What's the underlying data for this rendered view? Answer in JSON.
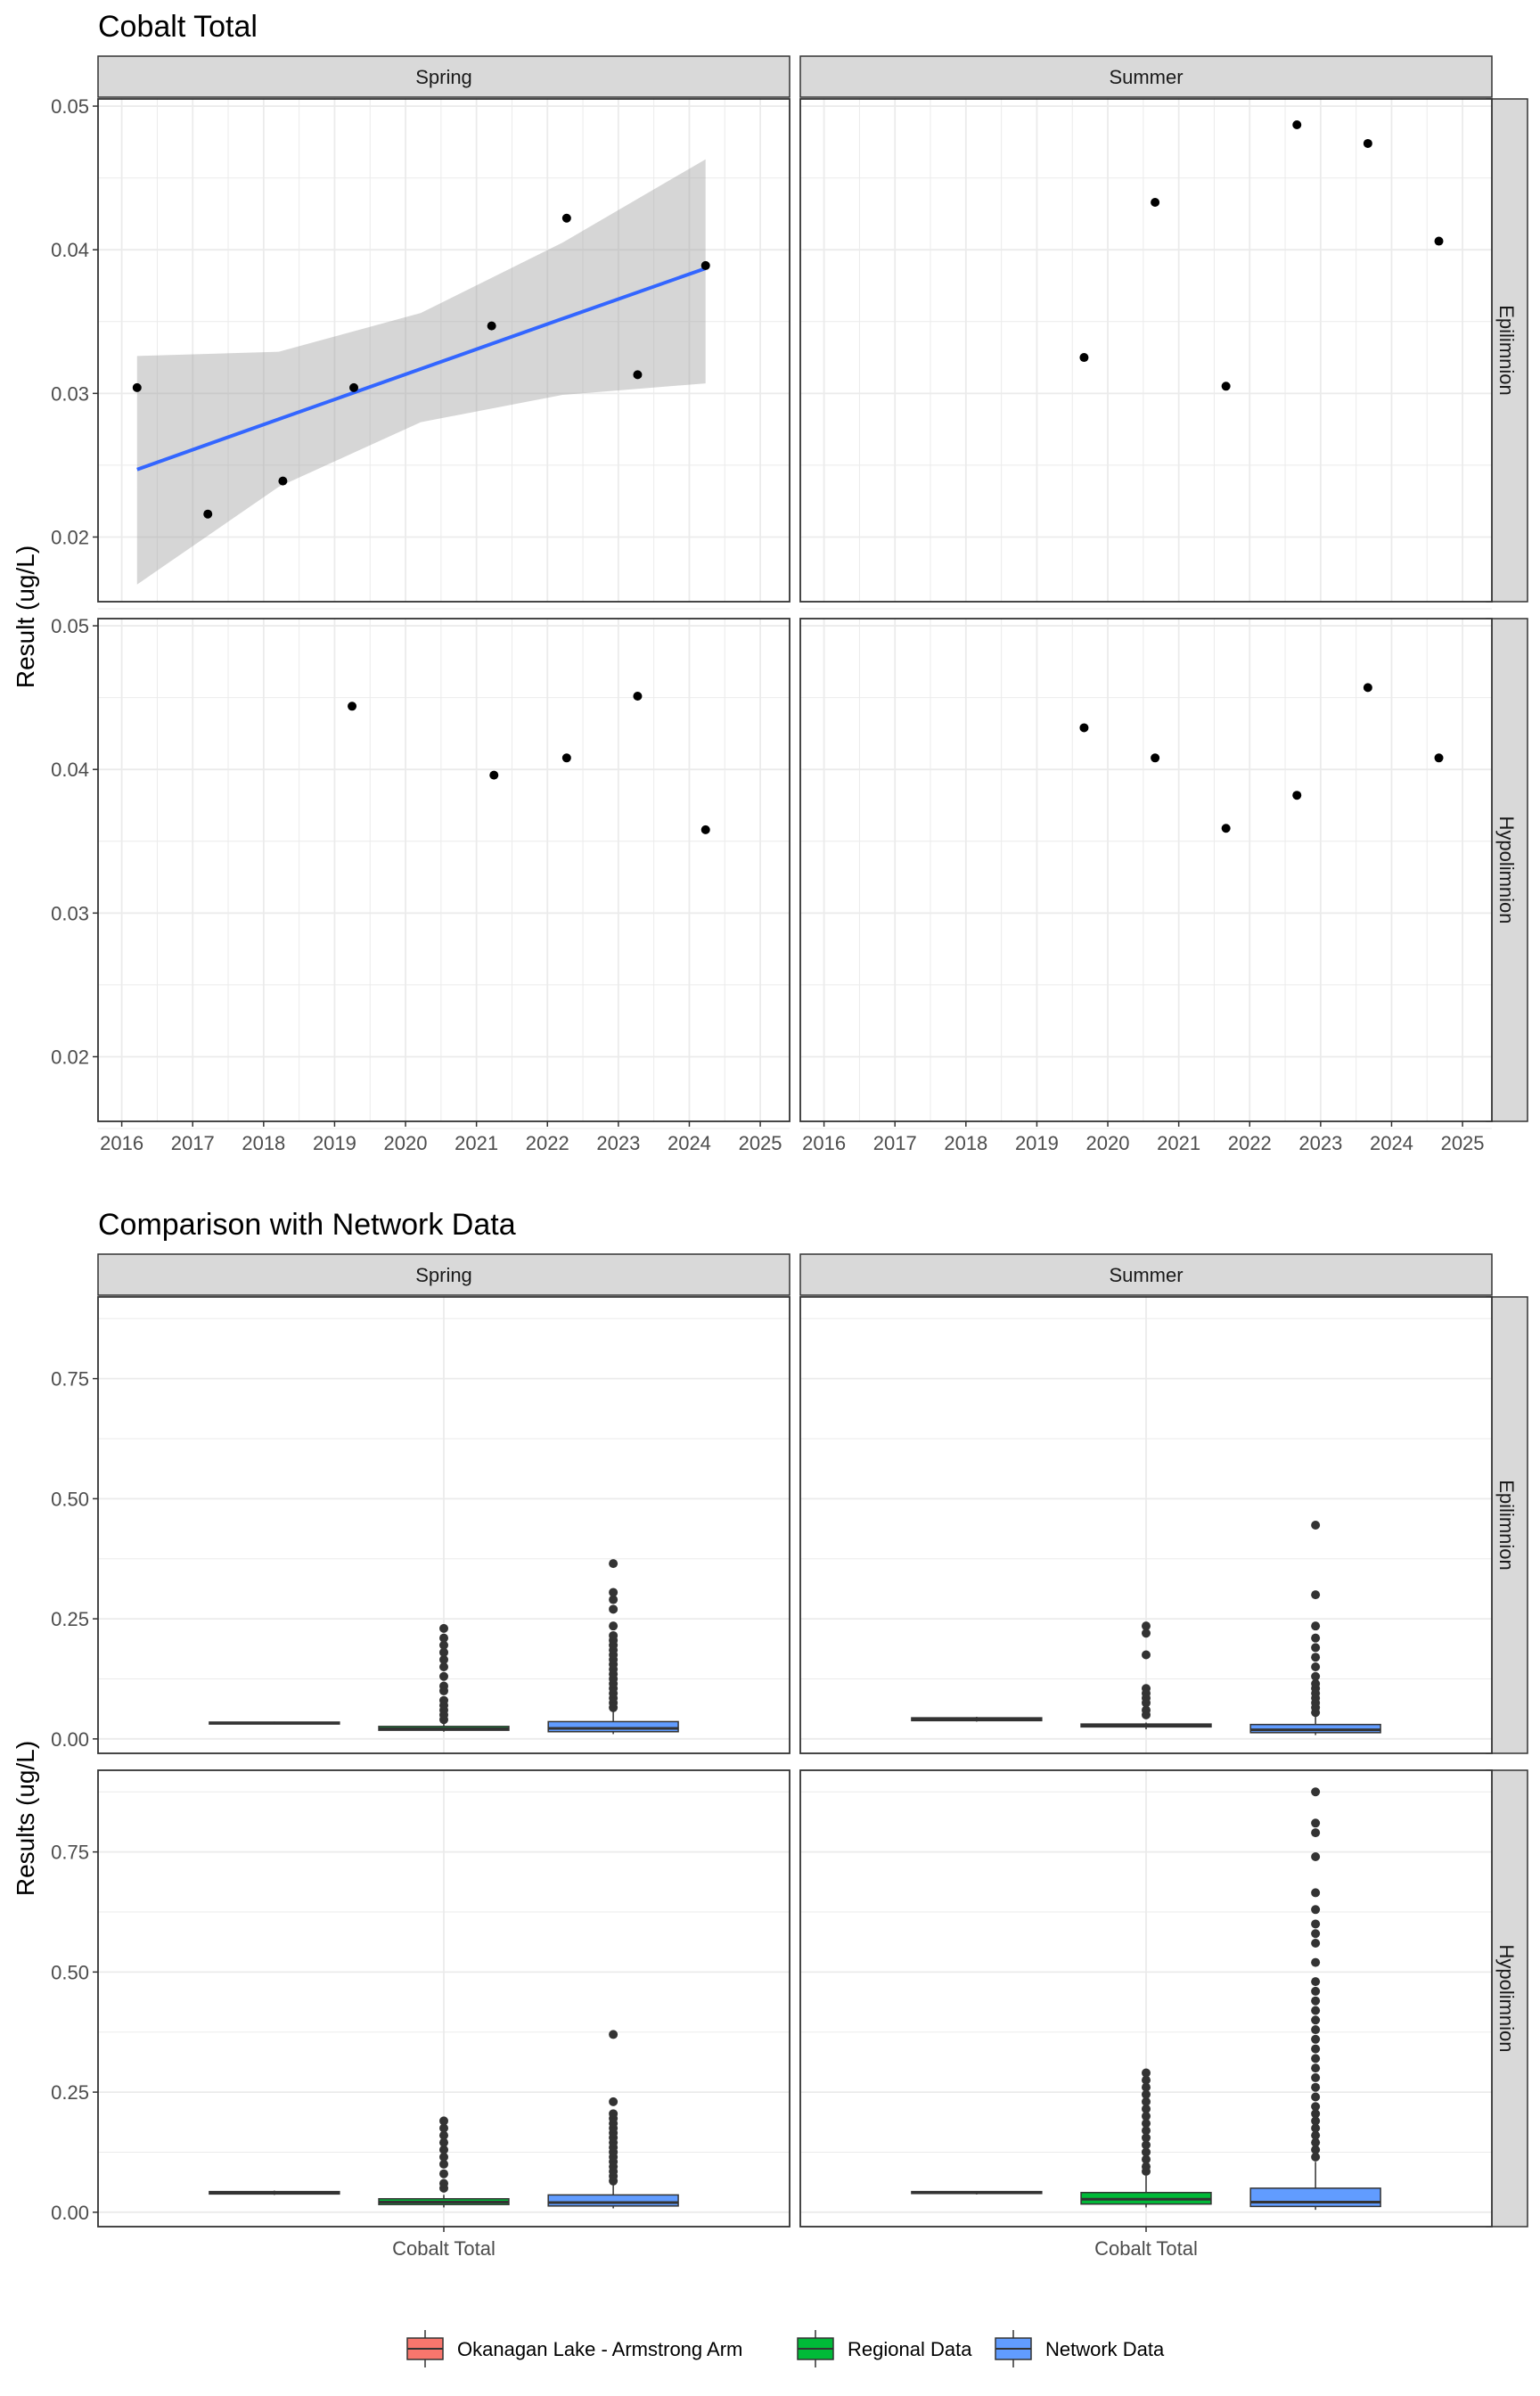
{
  "chart_data": [
    {
      "type": "scatter",
      "title": "Cobalt Total",
      "ylabel": "Result (ug/L)",
      "xlabel": "",
      "x_ticks": [
        "2016",
        "2017",
        "2018",
        "2019",
        "2020",
        "2021",
        "2022",
        "2023",
        "2024",
        "2025"
      ],
      "y_ticks": [
        "0.02",
        "0.03",
        "0.04",
        "0.05"
      ],
      "xlim": [
        "2015-09-01",
        "2025-06-01"
      ],
      "ylim": [
        0.0155,
        0.0505
      ],
      "columns": [
        "Spring",
        "Summer"
      ],
      "rows": [
        "Epilimnion",
        "Hypolimnion"
      ],
      "grid": true,
      "facets": [
        {
          "column": "Spring",
          "row": "Epilimnion",
          "points": [
            {
              "x": "2016-03-20",
              "y": 0.0304
            },
            {
              "x": "2017-03-20",
              "y": 0.0216
            },
            {
              "x": "2018-04-10",
              "y": 0.0239
            },
            {
              "x": "2019-04-10",
              "y": 0.0304
            },
            {
              "x": "2021-03-20",
              "y": 0.0347
            },
            {
              "x": "2022-04-10",
              "y": 0.0422
            },
            {
              "x": "2023-04-10",
              "y": 0.0313
            },
            {
              "x": "2024-03-25",
              "y": 0.0389
            }
          ],
          "trend": {
            "x": [
              "2016-03-20",
              "2018-03-20",
              "2020-03-20",
              "2022-03-20",
              "2024-03-25"
            ],
            "fit": [
              0.0247,
              0.0282,
              0.0317,
              0.0352,
              0.0387
            ],
            "lower": [
              0.0167,
              0.0235,
              0.028,
              0.0299,
              0.0307
            ],
            "upper": [
              0.0326,
              0.0329,
              0.0356,
              0.0405,
              0.0463
            ]
          }
        },
        {
          "column": "Summer",
          "row": "Epilimnion",
          "points": [
            {
              "x": "2019-09-01",
              "y": 0.0325
            },
            {
              "x": "2020-09-01",
              "y": 0.0433
            },
            {
              "x": "2021-09-01",
              "y": 0.0305
            },
            {
              "x": "2022-09-01",
              "y": 0.0487
            },
            {
              "x": "2023-09-01",
              "y": 0.0474
            },
            {
              "x": "2024-09-01",
              "y": 0.0406
            }
          ]
        },
        {
          "column": "Spring",
          "row": "Hypolimnion",
          "points": [
            {
              "x": "2019-04-01",
              "y": 0.0444
            },
            {
              "x": "2021-04-01",
              "y": 0.0396
            },
            {
              "x": "2022-04-10",
              "y": 0.0408
            },
            {
              "x": "2023-04-10",
              "y": 0.0451
            },
            {
              "x": "2024-03-25",
              "y": 0.0358
            }
          ]
        },
        {
          "column": "Summer",
          "row": "Hypolimnion",
          "points": [
            {
              "x": "2019-09-01",
              "y": 0.0429
            },
            {
              "x": "2020-09-01",
              "y": 0.0408
            },
            {
              "x": "2021-09-01",
              "y": 0.0359
            },
            {
              "x": "2022-09-01",
              "y": 0.0382
            },
            {
              "x": "2023-09-01",
              "y": 0.0457
            },
            {
              "x": "2024-09-01",
              "y": 0.0408
            }
          ]
        }
      ]
    },
    {
      "type": "box",
      "title": "Comparison with Network Data",
      "ylabel": "Results (ug/L)",
      "category": "Cobalt Total",
      "y_ticks": [
        "0.00",
        "0.25",
        "0.50",
        "0.75"
      ],
      "ylim": [
        -0.03,
        0.92
      ],
      "columns": [
        "Spring",
        "Summer"
      ],
      "rows": [
        "Epilimnion",
        "Hypolimnion"
      ],
      "legend": {
        "position": "bottom",
        "entries": [
          {
            "name": "Okanagan Lake - Armstrong Arm",
            "color": "#F8766D"
          },
          {
            "name": "Regional Data",
            "color": "#00BA38"
          },
          {
            "name": "Network Data",
            "color": "#619CFF"
          }
        ]
      },
      "facets": [
        {
          "column": "Spring",
          "row": "Epilimnion",
          "boxes": [
            {
              "group": "Okanagan Lake - Armstrong Arm",
              "min": 0.031,
              "q1": 0.031,
              "median": 0.033,
              "q3": 0.035,
              "max": 0.036,
              "outliers": []
            },
            {
              "group": "Regional Data",
              "min": 0.015,
              "q1": 0.018,
              "median": 0.021,
              "q3": 0.026,
              "max": 0.031,
              "outliers": [
                0.04,
                0.05,
                0.06,
                0.07,
                0.08,
                0.1,
                0.11,
                0.13,
                0.15,
                0.165,
                0.18,
                0.195,
                0.21,
                0.23
              ]
            },
            {
              "group": "Network Data",
              "min": 0.01,
              "q1": 0.015,
              "median": 0.022,
              "q3": 0.036,
              "max": 0.06,
              "outliers": [
                0.065,
                0.075,
                0.085,
                0.095,
                0.105,
                0.115,
                0.125,
                0.135,
                0.145,
                0.155,
                0.165,
                0.175,
                0.185,
                0.195,
                0.205,
                0.215,
                0.235,
                0.27,
                0.29,
                0.305,
                0.365
              ]
            }
          ]
        },
        {
          "column": "Summer",
          "row": "Epilimnion",
          "boxes": [
            {
              "group": "Okanagan Lake - Armstrong Arm",
              "min": 0.036,
              "q1": 0.038,
              "median": 0.041,
              "q3": 0.044,
              "max": 0.046,
              "outliers": []
            },
            {
              "group": "Regional Data",
              "min": 0.02,
              "q1": 0.025,
              "median": 0.028,
              "q3": 0.031,
              "max": 0.034,
              "outliers": [
                0.05,
                0.06,
                0.075,
                0.085,
                0.095,
                0.105,
                0.175,
                0.22,
                0.235
              ]
            },
            {
              "group": "Network Data",
              "min": 0.008,
              "q1": 0.013,
              "median": 0.019,
              "q3": 0.03,
              "max": 0.05,
              "outliers": [
                0.055,
                0.065,
                0.075,
                0.085,
                0.095,
                0.105,
                0.115,
                0.13,
                0.15,
                0.17,
                0.19,
                0.21,
                0.235,
                0.3,
                0.445
              ]
            }
          ]
        },
        {
          "column": "Spring",
          "row": "Hypolimnion",
          "boxes": [
            {
              "group": "Okanagan Lake - Armstrong Arm",
              "min": 0.036,
              "q1": 0.038,
              "median": 0.041,
              "q3": 0.043,
              "max": 0.045,
              "outliers": []
            },
            {
              "group": "Regional Data",
              "min": 0.01,
              "q1": 0.016,
              "median": 0.021,
              "q3": 0.028,
              "max": 0.036,
              "outliers": [
                0.05,
                0.06,
                0.08,
                0.1,
                0.115,
                0.13,
                0.145,
                0.16,
                0.175,
                0.19
              ]
            },
            {
              "group": "Network Data",
              "min": 0.008,
              "q1": 0.013,
              "median": 0.02,
              "q3": 0.036,
              "max": 0.06,
              "outliers": [
                0.065,
                0.075,
                0.085,
                0.095,
                0.105,
                0.115,
                0.125,
                0.135,
                0.145,
                0.155,
                0.165,
                0.175,
                0.185,
                0.195,
                0.205,
                0.23,
                0.37
              ]
            }
          ]
        },
        {
          "column": "Summer",
          "row": "Hypolimnion",
          "boxes": [
            {
              "group": "Okanagan Lake - Armstrong Arm",
              "min": 0.037,
              "q1": 0.039,
              "median": 0.041,
              "q3": 0.043,
              "max": 0.044,
              "outliers": []
            },
            {
              "group": "Regional Data",
              "min": 0.01,
              "q1": 0.017,
              "median": 0.027,
              "q3": 0.041,
              "max": 0.076,
              "outliers": [
                0.085,
                0.095,
                0.11,
                0.125,
                0.14,
                0.155,
                0.17,
                0.185,
                0.2,
                0.215,
                0.23,
                0.245,
                0.26,
                0.275,
                0.29
              ]
            },
            {
              "group": "Network Data",
              "min": 0.005,
              "q1": 0.012,
              "median": 0.021,
              "q3": 0.05,
              "max": 0.105,
              "outliers": [
                0.115,
                0.13,
                0.145,
                0.16,
                0.175,
                0.19,
                0.205,
                0.22,
                0.24,
                0.26,
                0.28,
                0.3,
                0.32,
                0.34,
                0.36,
                0.38,
                0.4,
                0.42,
                0.44,
                0.46,
                0.48,
                0.52,
                0.56,
                0.58,
                0.6,
                0.63,
                0.665,
                0.74,
                0.79,
                0.81,
                0.875
              ]
            }
          ]
        }
      ]
    }
  ]
}
